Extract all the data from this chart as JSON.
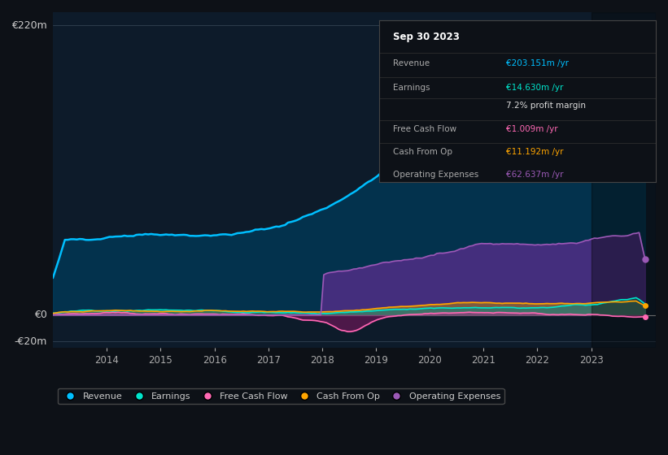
{
  "background_color": "#0d1117",
  "plot_bg_color": "#0d1b2a",
  "ylabel_top": "€220m",
  "ylabel_zero": "€0",
  "ylabel_neg": "-€20m",
  "colors": {
    "revenue": "#00bfff",
    "earnings": "#00e5cc",
    "free_cash_flow": "#ff69b4",
    "cash_from_op": "#ffa500",
    "operating_expenses": "#9b59b6"
  },
  "tooltip": {
    "date": "Sep 30 2023",
    "revenue_val": "€203.151m /yr",
    "earnings_val": "€14.630m /yr",
    "margin": "7.2% profit margin",
    "fcf_val": "€1.009m /yr",
    "cash_op_val": "€11.192m /yr",
    "op_exp_val": "€62.637m /yr"
  },
  "legend": [
    "Revenue",
    "Earnings",
    "Free Cash Flow",
    "Cash From Op",
    "Operating Expenses"
  ]
}
